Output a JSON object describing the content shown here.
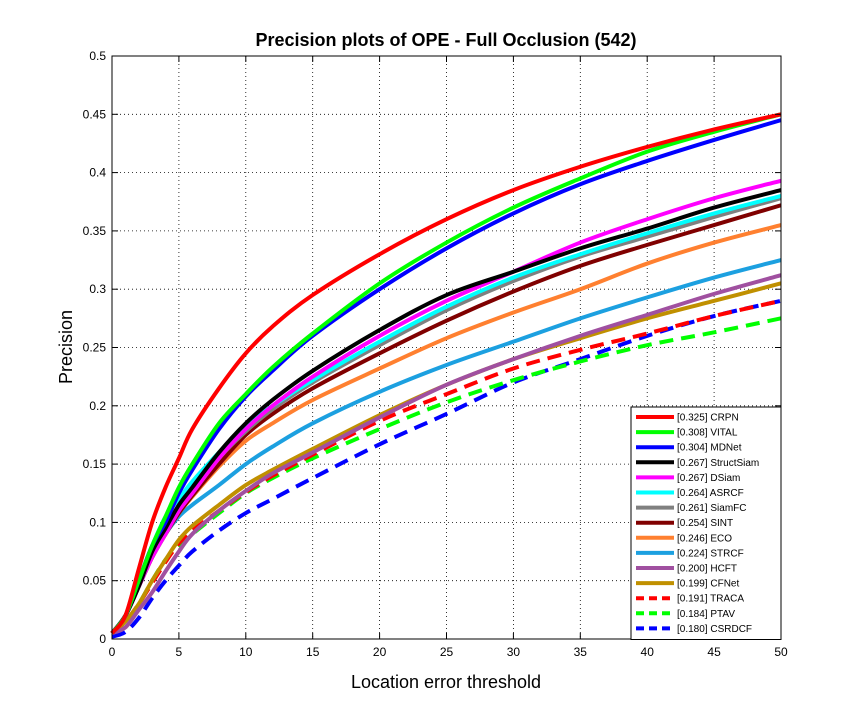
{
  "chart_data": {
    "type": "line",
    "title": "Precision plots of OPE - Full Occlusion (542)",
    "xlabel": "Location error threshold",
    "ylabel": "Precision",
    "xlim": [
      0,
      50
    ],
    "ylim": [
      0,
      0.5
    ],
    "xticks": [
      "0",
      "5",
      "10",
      "15",
      "20",
      "25",
      "30",
      "35",
      "40",
      "45",
      "50"
    ],
    "yticks": [
      "0",
      "0.05",
      "0.1",
      "0.15",
      "0.2",
      "0.25",
      "0.3",
      "0.35",
      "0.4",
      "0.45",
      "0.5"
    ],
    "grid": true,
    "legend_position": "bottom-right",
    "x": [
      0,
      1,
      2,
      3,
      4,
      5,
      6,
      8,
      10,
      12,
      15,
      20,
      25,
      30,
      35,
      40,
      45,
      50
    ],
    "series": [
      {
        "name": "[0.325] CRPN",
        "color": "#ff0000",
        "dash": "solid",
        "values": [
          0.005,
          0.02,
          0.06,
          0.1,
          0.13,
          0.155,
          0.18,
          0.215,
          0.245,
          0.268,
          0.295,
          0.33,
          0.36,
          0.385,
          0.405,
          0.422,
          0.437,
          0.45
        ]
      },
      {
        "name": "[0.308] VITAL",
        "color": "#00ff00",
        "dash": "solid",
        "values": [
          0.005,
          0.02,
          0.05,
          0.08,
          0.105,
          0.13,
          0.15,
          0.185,
          0.21,
          0.233,
          0.262,
          0.305,
          0.34,
          0.37,
          0.395,
          0.418,
          0.435,
          0.45
        ]
      },
      {
        "name": "[0.304] MDNet",
        "color": "#0000ff",
        "dash": "solid",
        "values": [
          0.005,
          0.02,
          0.05,
          0.08,
          0.1,
          0.125,
          0.145,
          0.18,
          0.208,
          0.23,
          0.26,
          0.3,
          0.335,
          0.365,
          0.39,
          0.41,
          0.428,
          0.445
        ]
      },
      {
        "name": "[0.267] StructSiam",
        "color": "#000000",
        "dash": "solid",
        "values": [
          0.005,
          0.02,
          0.045,
          0.075,
          0.095,
          0.115,
          0.13,
          0.16,
          0.185,
          0.205,
          0.23,
          0.265,
          0.295,
          0.315,
          0.335,
          0.352,
          0.37,
          0.385
        ]
      },
      {
        "name": "[0.267] DSiam",
        "color": "#ff00ff",
        "dash": "solid",
        "values": [
          0.005,
          0.02,
          0.045,
          0.07,
          0.09,
          0.11,
          0.125,
          0.155,
          0.18,
          0.2,
          0.225,
          0.26,
          0.29,
          0.315,
          0.34,
          0.36,
          0.378,
          0.393
        ]
      },
      {
        "name": "[0.264] ASRCF",
        "color": "#00ffff",
        "dash": "solid",
        "values": [
          0.005,
          0.02,
          0.05,
          0.08,
          0.105,
          0.12,
          0.135,
          0.16,
          0.183,
          0.2,
          0.222,
          0.255,
          0.285,
          0.31,
          0.33,
          0.348,
          0.365,
          0.38
        ]
      },
      {
        "name": "[0.261] SiamFC",
        "color": "#808080",
        "dash": "solid",
        "values": [
          0.005,
          0.02,
          0.045,
          0.07,
          0.09,
          0.11,
          0.125,
          0.155,
          0.178,
          0.197,
          0.22,
          0.252,
          0.282,
          0.307,
          0.328,
          0.345,
          0.362,
          0.378
        ]
      },
      {
        "name": "[0.254] SINT",
        "color": "#800000",
        "dash": "solid",
        "values": [
          0.005,
          0.02,
          0.045,
          0.07,
          0.09,
          0.108,
          0.123,
          0.15,
          0.175,
          0.193,
          0.215,
          0.245,
          0.273,
          0.298,
          0.32,
          0.338,
          0.355,
          0.372
        ]
      },
      {
        "name": "[0.246] ECO",
        "color": "#ff8030",
        "dash": "solid",
        "values": [
          0.005,
          0.02,
          0.045,
          0.07,
          0.09,
          0.108,
          0.122,
          0.148,
          0.17,
          0.185,
          0.205,
          0.232,
          0.258,
          0.28,
          0.3,
          0.322,
          0.34,
          0.355
        ]
      },
      {
        "name": "[0.224] STRCF",
        "color": "#1ca0e0",
        "dash": "solid",
        "values": [
          0.005,
          0.02,
          0.045,
          0.07,
          0.09,
          0.105,
          0.115,
          0.132,
          0.15,
          0.165,
          0.185,
          0.212,
          0.235,
          0.255,
          0.275,
          0.293,
          0.31,
          0.325
        ]
      },
      {
        "name": "[0.200] HCFT",
        "color": "#a050a0",
        "dash": "solid",
        "values": [
          0.005,
          0.01,
          0.025,
          0.04,
          0.058,
          0.075,
          0.09,
          0.11,
          0.127,
          0.142,
          0.16,
          0.19,
          0.218,
          0.24,
          0.26,
          0.278,
          0.296,
          0.312
        ]
      },
      {
        "name": "[0.199] CFNet",
        "color": "#c09000",
        "dash": "solid",
        "values": [
          0.005,
          0.015,
          0.03,
          0.05,
          0.068,
          0.085,
          0.097,
          0.115,
          0.132,
          0.145,
          0.163,
          0.192,
          0.218,
          0.24,
          0.258,
          0.275,
          0.29,
          0.305
        ]
      },
      {
        "name": "[0.191] TRACA",
        "color": "#ff0000",
        "dash": "dashed",
        "values": [
          0.005,
          0.015,
          0.03,
          0.048,
          0.066,
          0.082,
          0.093,
          0.11,
          0.126,
          0.14,
          0.158,
          0.187,
          0.21,
          0.232,
          0.248,
          0.262,
          0.277,
          0.29
        ]
      },
      {
        "name": "[0.184] PTAV",
        "color": "#00ff00",
        "dash": "dashed",
        "values": [
          0.005,
          0.015,
          0.03,
          0.05,
          0.068,
          0.08,
          0.09,
          0.108,
          0.125,
          0.138,
          0.155,
          0.18,
          0.203,
          0.222,
          0.238,
          0.252,
          0.263,
          0.275
        ]
      },
      {
        "name": "[0.180] CSRDCF",
        "color": "#0000ff",
        "dash": "dashed",
        "values": [
          0.002,
          0.006,
          0.018,
          0.035,
          0.05,
          0.063,
          0.075,
          0.093,
          0.108,
          0.12,
          0.138,
          0.167,
          0.193,
          0.22,
          0.24,
          0.26,
          0.277,
          0.29
        ]
      }
    ]
  }
}
